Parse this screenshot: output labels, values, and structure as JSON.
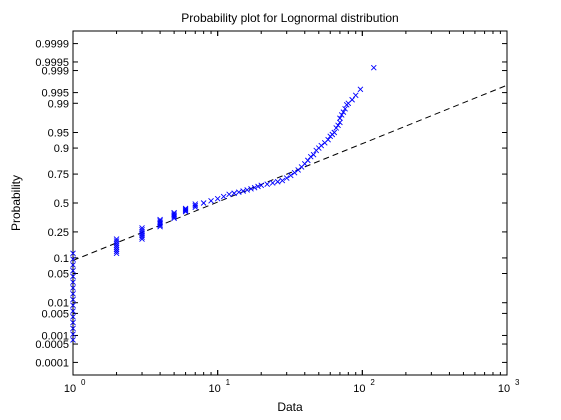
{
  "chart_data": {
    "type": "scatter",
    "title": "Probability plot for Lognormal distribution",
    "xlabel": "Data",
    "ylabel": "Probability",
    "xscale": "log",
    "xlim": [
      1,
      1000
    ],
    "x_ticks": [
      {
        "value": 1,
        "base": "10",
        "exp": "0"
      },
      {
        "value": 10,
        "base": "10",
        "exp": "1"
      },
      {
        "value": 100,
        "base": "10",
        "exp": "2"
      },
      {
        "value": 1000,
        "base": "10",
        "exp": "3"
      }
    ],
    "yscale": "normal-probability",
    "ylim": [
      3e-05,
      0.99997
    ],
    "y_ticks": [
      {
        "value": 0.0001,
        "label": "0.0001"
      },
      {
        "value": 0.0005,
        "label": "0.0005"
      },
      {
        "value": 0.001,
        "label": "0.001"
      },
      {
        "value": 0.005,
        "label": "0.005"
      },
      {
        "value": 0.01,
        "label": "0.01"
      },
      {
        "value": 0.05,
        "label": "0.05"
      },
      {
        "value": 0.1,
        "label": "0.1"
      },
      {
        "value": 0.25,
        "label": "0.25"
      },
      {
        "value": 0.5,
        "label": "0.5"
      },
      {
        "value": 0.75,
        "label": "0.75"
      },
      {
        "value": 0.9,
        "label": "0.9"
      },
      {
        "value": 0.95,
        "label": "0.95"
      },
      {
        "value": 0.99,
        "label": "0.99"
      },
      {
        "value": 0.995,
        "label": "0.995"
      },
      {
        "value": 0.999,
        "label": "0.999"
      },
      {
        "value": 0.9995,
        "label": "0.9995"
      },
      {
        "value": 0.9999,
        "label": "0.9999"
      }
    ],
    "grid": false,
    "colors": {
      "markers": "#0000ff",
      "reference_line": "#000000",
      "axes": "#000000"
    },
    "marker": "x",
    "series": [
      {
        "clusters": [
          {
            "x": 1,
            "p_min": 0.0007,
            "p_max": 0.12,
            "n": 16
          },
          {
            "x": 2,
            "p_min": 0.12,
            "p_max": 0.2,
            "n": 8
          },
          {
            "x": 3,
            "p_min": 0.2,
            "p_max": 0.28,
            "n": 7
          },
          {
            "x": 4,
            "p_min": 0.29,
            "p_max": 0.35,
            "n": 6
          },
          {
            "x": 5,
            "p_min": 0.36,
            "p_max": 0.41,
            "n": 5
          },
          {
            "x": 6,
            "p_min": 0.42,
            "p_max": 0.45,
            "n": 4
          },
          {
            "x": 7,
            "p_min": 0.46,
            "p_max": 0.49,
            "n": 3
          }
        ],
        "points": [
          {
            "x": 8,
            "p": 0.5
          },
          {
            "x": 9,
            "p": 0.52
          },
          {
            "x": 10,
            "p": 0.54
          },
          {
            "x": 11,
            "p": 0.56
          },
          {
            "x": 12,
            "p": 0.58
          },
          {
            "x": 13,
            "p": 0.59
          },
          {
            "x": 14,
            "p": 0.6
          },
          {
            "x": 15,
            "p": 0.61
          },
          {
            "x": 16,
            "p": 0.62
          },
          {
            "x": 17,
            "p": 0.63
          },
          {
            "x": 18,
            "p": 0.64
          },
          {
            "x": 19,
            "p": 0.65
          },
          {
            "x": 20,
            "p": 0.66
          },
          {
            "x": 22,
            "p": 0.67
          },
          {
            "x": 24,
            "p": 0.68
          },
          {
            "x": 26,
            "p": 0.69
          },
          {
            "x": 28,
            "p": 0.7
          },
          {
            "x": 30,
            "p": 0.72
          },
          {
            "x": 32,
            "p": 0.74
          },
          {
            "x": 34,
            "p": 0.76
          },
          {
            "x": 36,
            "p": 0.78
          },
          {
            "x": 38,
            "p": 0.8
          },
          {
            "x": 40,
            "p": 0.82
          },
          {
            "x": 42,
            "p": 0.84
          },
          {
            "x": 44,
            "p": 0.86
          },
          {
            "x": 46,
            "p": 0.87
          },
          {
            "x": 48,
            "p": 0.89
          },
          {
            "x": 50,
            "p": 0.9
          },
          {
            "x": 52,
            "p": 0.91
          },
          {
            "x": 55,
            "p": 0.92
          },
          {
            "x": 58,
            "p": 0.93
          },
          {
            "x": 60,
            "p": 0.94
          },
          {
            "x": 62,
            "p": 0.945
          },
          {
            "x": 64,
            "p": 0.95
          },
          {
            "x": 66,
            "p": 0.96
          },
          {
            "x": 68,
            "p": 0.965
          },
          {
            "x": 70,
            "p": 0.97
          },
          {
            "x": 70,
            "p": 0.976
          },
          {
            "x": 72,
            "p": 0.98
          },
          {
            "x": 74,
            "p": 0.983
          },
          {
            "x": 76,
            "p": 0.986
          },
          {
            "x": 78,
            "p": 0.989
          },
          {
            "x": 80,
            "p": 0.99
          },
          {
            "x": 85,
            "p": 0.992
          },
          {
            "x": 90,
            "p": 0.994
          },
          {
            "x": 97,
            "p": 0.996
          },
          {
            "x": 120,
            "p": 0.9992
          }
        ]
      }
    ],
    "reference_line": {
      "style": "dashed",
      "x1": 1,
      "p1": 0.09,
      "x2": 1000,
      "p2": 0.997
    }
  }
}
